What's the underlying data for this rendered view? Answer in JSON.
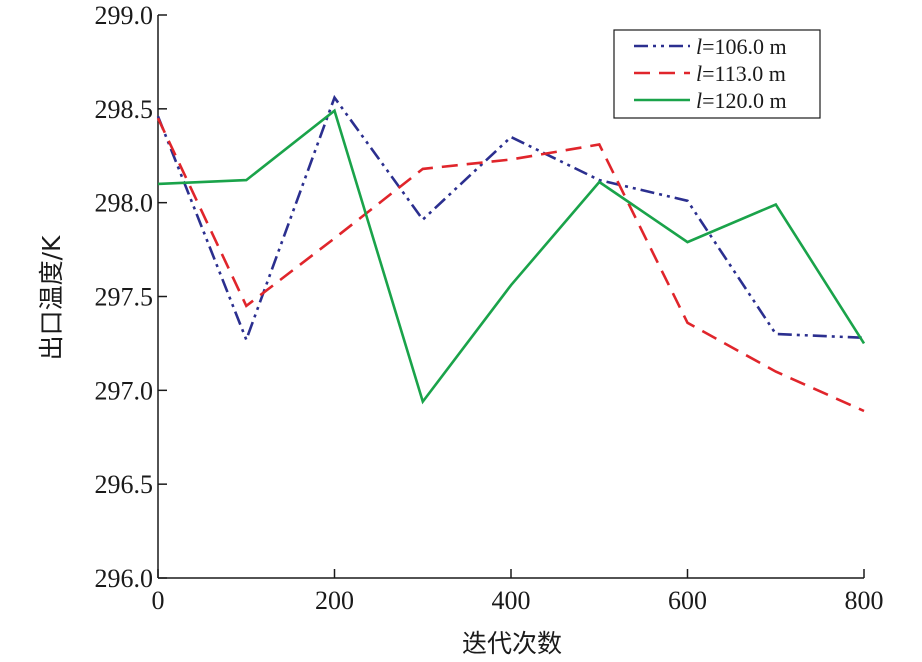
{
  "chart_data": {
    "type": "line",
    "title": "",
    "xlabel": "迭代次数",
    "ylabel": "出口温度/K",
    "xlim": [
      0,
      800
    ],
    "ylim": [
      296.0,
      299.0
    ],
    "xticks": [
      "0",
      "200",
      "400",
      "600",
      "800"
    ],
    "xtick_values": [
      0,
      200,
      400,
      600,
      800
    ],
    "yticks": [
      "296.0",
      "296.5",
      "297.0",
      "297.5",
      "298.0",
      "298.5",
      "299.0"
    ],
    "ytick_values": [
      296.0,
      296.5,
      297.0,
      297.5,
      298.0,
      298.5,
      299.0
    ],
    "grid": false,
    "legend_position": "top-right",
    "x": [
      0,
      100,
      200,
      300,
      400,
      500,
      600,
      700,
      800
    ],
    "series": [
      {
        "name": "l=106.0 m",
        "name_var": "l",
        "name_rest": "=106.0 m",
        "color": "#2b2f8f",
        "dash": "dash-dot-dot",
        "values": [
          298.46,
          297.27,
          298.56,
          297.91,
          298.35,
          298.12,
          298.01,
          297.3,
          297.28
        ]
      },
      {
        "name": "l=113.0 m",
        "name_var": "l",
        "name_rest": "=113.0 m",
        "color": "#e0252b",
        "dash": "dashed",
        "values": [
          298.45,
          297.45,
          297.81,
          298.18,
          298.23,
          298.31,
          297.36,
          297.1,
          296.89
        ]
      },
      {
        "name": "l=120.0 m",
        "name_var": "l",
        "name_rest": "=120.0 m",
        "color": "#1aa34a",
        "dash": "solid",
        "values": [
          298.1,
          298.12,
          298.49,
          296.94,
          297.56,
          298.11,
          297.79,
          297.99,
          297.25
        ]
      }
    ]
  }
}
